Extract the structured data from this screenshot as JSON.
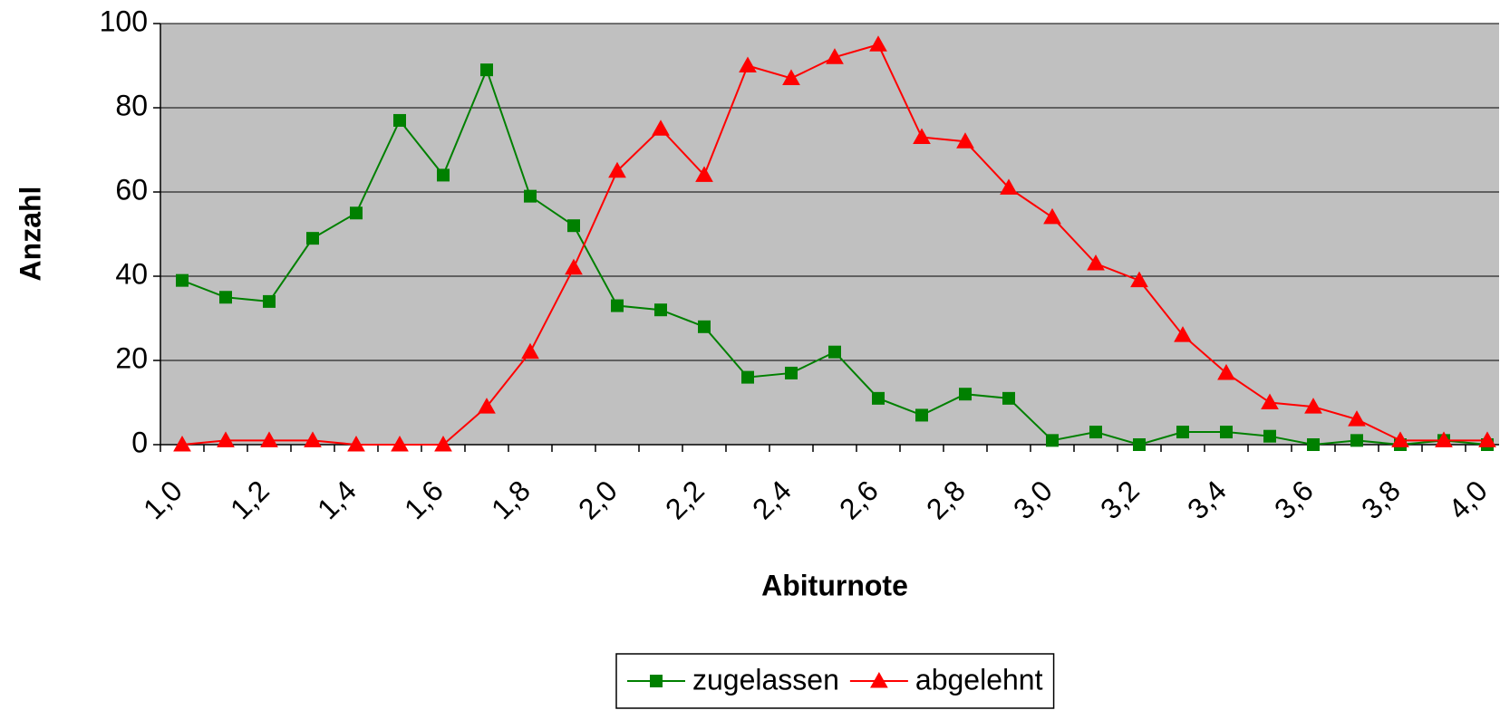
{
  "chart_data": {
    "type": "line",
    "x_label": "Abiturnote",
    "y_label": "Anzahl",
    "categories": [
      "1,0",
      null,
      "1,2",
      null,
      "1,4",
      null,
      "1,6",
      null,
      "1,8",
      null,
      "2,0",
      null,
      "2,2",
      null,
      "2,4",
      null,
      "2,6",
      null,
      "2,8",
      null,
      "3,0",
      null,
      "3,2",
      null,
      "3,4",
      null,
      "3,6",
      null,
      "3,8",
      null,
      "4,0"
    ],
    "series": [
      {
        "name": "zugelassen",
        "color": "#008000",
        "marker": "square",
        "values": [
          39,
          35,
          34,
          49,
          55,
          77,
          64,
          89,
          59,
          52,
          33,
          32,
          28,
          16,
          17,
          22,
          11,
          7,
          12,
          11,
          1,
          3,
          0,
          3,
          3,
          2,
          0,
          1,
          0,
          1,
          0
        ]
      },
      {
        "name": "abgelehnt",
        "color": "#ff0000",
        "marker": "triangle",
        "values": [
          0,
          1,
          1,
          1,
          0,
          0,
          0,
          9,
          22,
          42,
          65,
          75,
          64,
          90,
          87,
          92,
          95,
          73,
          72,
          61,
          54,
          43,
          39,
          26,
          17,
          10,
          9,
          6,
          1,
          1,
          1
        ]
      }
    ],
    "ylim": [
      0,
      100
    ],
    "yticks": [
      0,
      20,
      40,
      60,
      80,
      100
    ],
    "grid": true,
    "plot_background": "#c0c0c0",
    "legend": "bottom"
  }
}
